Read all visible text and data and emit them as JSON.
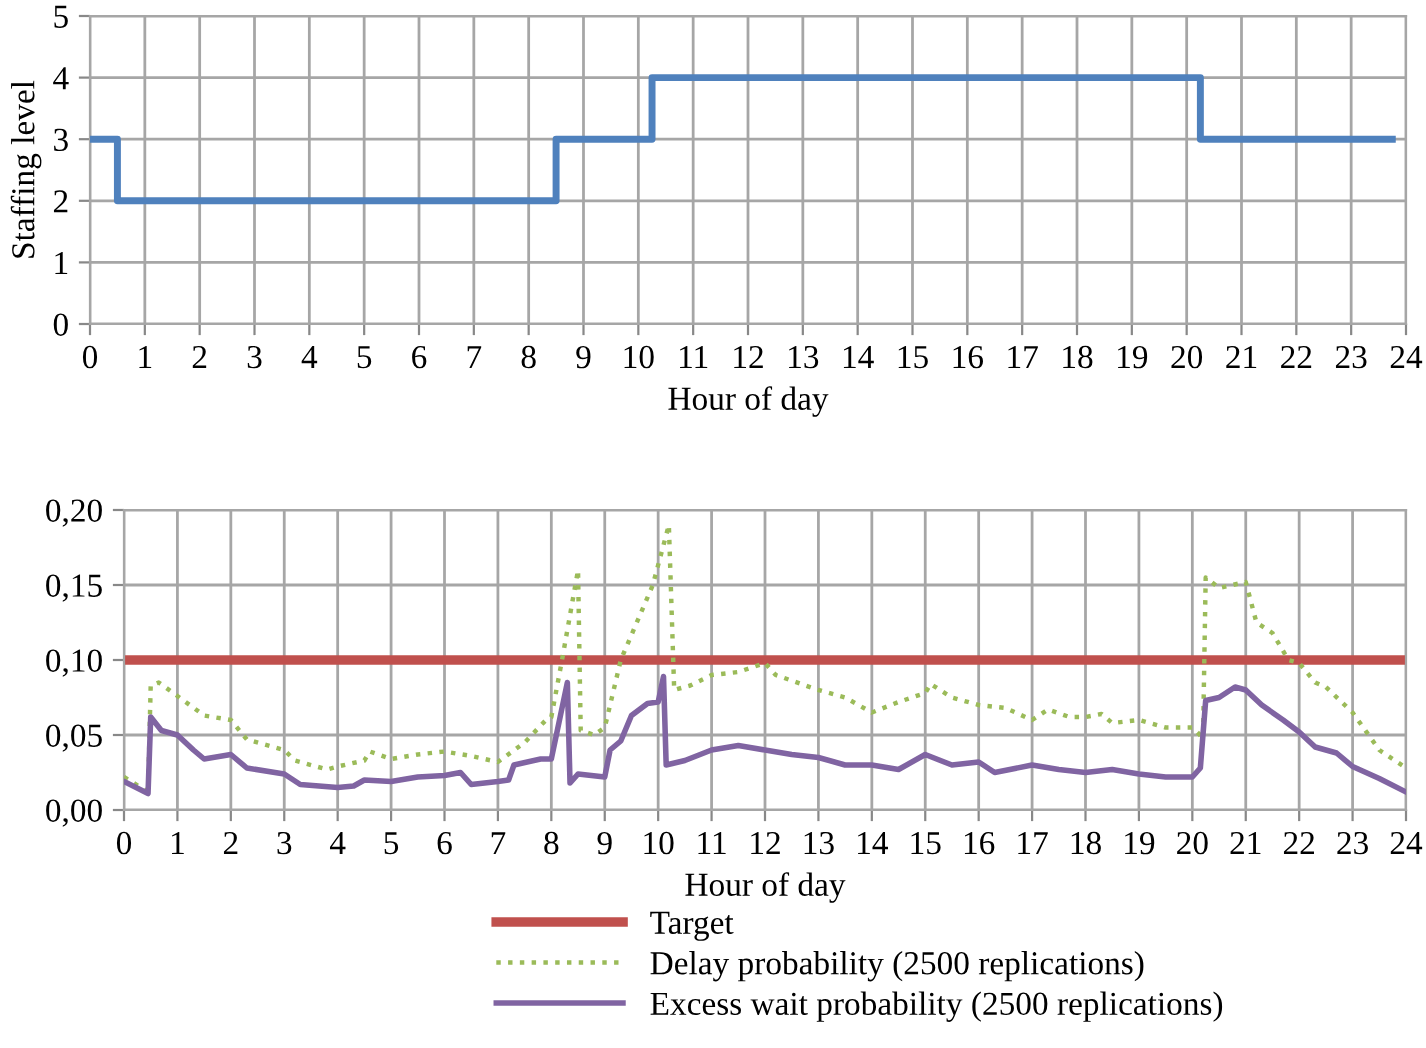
{
  "chart_data": [
    {
      "type": "step",
      "ylabel": "Staffing level",
      "xlabel": "Hour of day",
      "xlim": [
        0,
        24
      ],
      "xticks": [
        0,
        1,
        2,
        3,
        4,
        5,
        6,
        7,
        8,
        9,
        10,
        11,
        12,
        13,
        14,
        15,
        16,
        17,
        18,
        19,
        20,
        21,
        22,
        23,
        24
      ],
      "ylim": [
        0,
        5
      ],
      "yticks": [
        0,
        1,
        2,
        3,
        4,
        5
      ],
      "grid": true,
      "legend": false,
      "series": [
        {
          "color": "#4f81bd",
          "x": [
            0,
            0.5,
            8.5,
            10.25,
            20.25,
            23.75
          ],
          "values": [
            3,
            2,
            3,
            4,
            3,
            3
          ]
        }
      ]
    },
    {
      "type": "line",
      "xlabel": "Hour of day",
      "xlim": [
        0,
        24
      ],
      "xticks": [
        0,
        1,
        2,
        3,
        4,
        5,
        6,
        7,
        8,
        9,
        10,
        11,
        12,
        13,
        14,
        15,
        16,
        17,
        18,
        19,
        20,
        21,
        22,
        23,
        24
      ],
      "ylim": [
        0,
        0.2
      ],
      "yticks": [
        {
          "value": 0,
          "label": "0,00"
        },
        {
          "value": 0.05,
          "label": "0,05"
        },
        {
          "value": 0.1,
          "label": "0,10"
        },
        {
          "value": 0.15,
          "label": "0,15"
        },
        {
          "value": 0.2,
          "label": "0,20"
        }
      ],
      "grid": true,
      "legend": "bottom",
      "ref_lines": [
        {
          "axis": "y",
          "value": 0.1,
          "label": "Target",
          "color": "#c0504d"
        }
      ],
      "series": [
        {
          "name": "Delay probability (2500 replications)",
          "color": "#9bbb59",
          "line_style": "dotted",
          "x": [
            0,
            0.45,
            0.5,
            0.65,
            1,
            1.5,
            2,
            2.3,
            3,
            3.2,
            3.8,
            4,
            4.5,
            4.6,
            5,
            5.5,
            6,
            6.5,
            7,
            7.5,
            7.9,
            8,
            8.2,
            8.5,
            8.55,
            8.8,
            9,
            9.3,
            9.6,
            9.9,
            10.2,
            10.3,
            10.6,
            11,
            11.5,
            12,
            12.2,
            13,
            13.5,
            14,
            14.5,
            15,
            15.1,
            15.5,
            16,
            16.5,
            17,
            17.3,
            17.7,
            18,
            18.3,
            18.5,
            19,
            19.5,
            20,
            20.2,
            20.25,
            20.5,
            21,
            21.2,
            21.5,
            21.8,
            22,
            22.3,
            22.5,
            23,
            23.5,
            24
          ],
          "values": [
            0.022,
            0.012,
            0.083,
            0.085,
            0.076,
            0.063,
            0.06,
            0.047,
            0.04,
            0.033,
            0.027,
            0.029,
            0.033,
            0.039,
            0.034,
            0.037,
            0.039,
            0.036,
            0.032,
            0.045,
            0.06,
            0.062,
            0.1,
            0.16,
            0.053,
            0.05,
            0.055,
            0.1,
            0.125,
            0.15,
            0.19,
            0.08,
            0.083,
            0.09,
            0.092,
            0.098,
            0.09,
            0.08,
            0.075,
            0.065,
            0.072,
            0.078,
            0.084,
            0.075,
            0.07,
            0.068,
            0.06,
            0.067,
            0.062,
            0.062,
            0.064,
            0.058,
            0.06,
            0.055,
            0.055,
            0.048,
            0.155,
            0.148,
            0.152,
            0.125,
            0.118,
            0.1,
            0.098,
            0.085,
            0.082,
            0.065,
            0.04,
            0.028
          ]
        },
        {
          "name": "Excess wait probability (2500 replications)",
          "color": "#8064a2",
          "line_style": "solid",
          "x": [
            0,
            0.45,
            0.5,
            0.7,
            1,
            1.3,
            1.5,
            2,
            2.3,
            3,
            3.3,
            4,
            4.3,
            4.5,
            5,
            5.5,
            6,
            6.3,
            6.5,
            7,
            7.2,
            7.3,
            7.8,
            8,
            8.3,
            8.35,
            8.5,
            9,
            9.1,
            9.3,
            9.5,
            9.8,
            10,
            10.1,
            10.15,
            10.5,
            11,
            11.5,
            12,
            12.5,
            13,
            13.5,
            14,
            14.5,
            15,
            15.5,
            16,
            16.3,
            17,
            17.5,
            18,
            18.5,
            19,
            19.5,
            20,
            20.15,
            20.25,
            20.5,
            20.8,
            21,
            21.3,
            21.7,
            22,
            22.3,
            22.7,
            23,
            23.5,
            24
          ],
          "values": [
            0.019,
            0.011,
            0.062,
            0.053,
            0.05,
            0.04,
            0.034,
            0.037,
            0.028,
            0.024,
            0.017,
            0.015,
            0.016,
            0.02,
            0.019,
            0.022,
            0.023,
            0.025,
            0.017,
            0.019,
            0.02,
            0.03,
            0.034,
            0.034,
            0.085,
            0.018,
            0.024,
            0.022,
            0.04,
            0.046,
            0.063,
            0.071,
            0.072,
            0.089,
            0.03,
            0.033,
            0.04,
            0.043,
            0.04,
            0.037,
            0.035,
            0.03,
            0.03,
            0.027,
            0.037,
            0.03,
            0.032,
            0.025,
            0.03,
            0.027,
            0.025,
            0.027,
            0.024,
            0.022,
            0.022,
            0.028,
            0.073,
            0.075,
            0.082,
            0.08,
            0.07,
            0.06,
            0.052,
            0.042,
            0.038,
            0.029,
            0.021,
            0.012
          ]
        }
      ]
    }
  ]
}
